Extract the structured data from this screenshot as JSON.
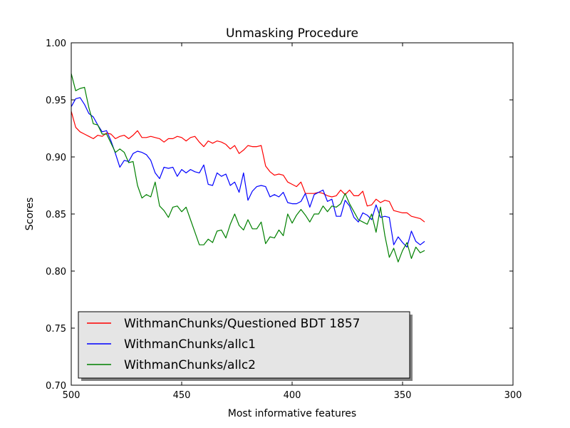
{
  "chart_data": {
    "type": "line",
    "title": "Unmasking Procedure",
    "xlabel": "Most informative features",
    "ylabel": "Scores",
    "xlim": [
      500,
      300
    ],
    "ylim": [
      0.7,
      1.0
    ],
    "xticks": [
      "500",
      "450",
      "400",
      "350",
      "300"
    ],
    "yticks": [
      "0.70",
      "0.75",
      "0.80",
      "0.85",
      "0.90",
      "0.95",
      "1.00"
    ],
    "grid": false,
    "legend_position": "lower-left",
    "x": [
      500,
      498,
      496,
      494,
      492,
      490,
      488,
      486,
      484,
      482,
      480,
      478,
      476,
      474,
      472,
      470,
      468,
      466,
      464,
      462,
      460,
      458,
      456,
      454,
      452,
      450,
      448,
      446,
      444,
      442,
      440,
      438,
      436,
      434,
      432,
      430,
      428,
      426,
      424,
      422,
      420,
      418,
      416,
      414,
      412,
      410,
      408,
      406,
      404,
      402,
      400,
      398,
      396,
      394,
      392,
      390,
      388,
      386,
      384,
      382,
      380,
      378,
      376,
      374,
      372,
      370,
      368,
      366,
      364,
      362,
      360,
      358,
      356,
      354,
      352,
      350,
      348,
      346,
      344,
      342,
      340
    ],
    "series": [
      {
        "name": "WithmanChunks/Questioned BDT 1857",
        "color": "#ff0000",
        "values": [
          0.94,
          0.926,
          0.922,
          0.92,
          0.918,
          0.916,
          0.919,
          0.918,
          0.921,
          0.92,
          0.916,
          0.918,
          0.919,
          0.916,
          0.919,
          0.923,
          0.917,
          0.917,
          0.918,
          0.917,
          0.916,
          0.913,
          0.916,
          0.916,
          0.918,
          0.917,
          0.914,
          0.917,
          0.918,
          0.913,
          0.909,
          0.914,
          0.912,
          0.914,
          0.913,
          0.911,
          0.907,
          0.91,
          0.903,
          0.906,
          0.91,
          0.909,
          0.909,
          0.91,
          0.892,
          0.887,
          0.884,
          0.885,
          0.884,
          0.878,
          0.876,
          0.874,
          0.878,
          0.868,
          0.868,
          0.868,
          0.869,
          0.868,
          0.866,
          0.865,
          0.866,
          0.871,
          0.867,
          0.871,
          0.866,
          0.866,
          0.87,
          0.857,
          0.858,
          0.863,
          0.86,
          0.862,
          0.861,
          0.853,
          0.852,
          0.851,
          0.851,
          0.848,
          0.847,
          0.846,
          0.843
        ]
      },
      {
        "name": "WithmanChunks/allc1",
        "color": "#0000ff",
        "values": [
          0.944,
          0.951,
          0.952,
          0.946,
          0.938,
          0.935,
          0.928,
          0.922,
          0.923,
          0.914,
          0.903,
          0.891,
          0.897,
          0.896,
          0.903,
          0.905,
          0.904,
          0.902,
          0.897,
          0.886,
          0.881,
          0.891,
          0.89,
          0.891,
          0.883,
          0.889,
          0.886,
          0.889,
          0.887,
          0.886,
          0.893,
          0.876,
          0.875,
          0.886,
          0.883,
          0.885,
          0.875,
          0.878,
          0.869,
          0.886,
          0.862,
          0.87,
          0.874,
          0.875,
          0.874,
          0.865,
          0.867,
          0.865,
          0.869,
          0.86,
          0.859,
          0.859,
          0.861,
          0.868,
          0.856,
          0.867,
          0.869,
          0.871,
          0.861,
          0.863,
          0.848,
          0.848,
          0.862,
          0.857,
          0.847,
          0.843,
          0.851,
          0.849,
          0.845,
          0.858,
          0.847,
          0.848,
          0.847,
          0.823,
          0.83,
          0.825,
          0.821,
          0.835,
          0.826,
          0.823,
          0.826
        ]
      },
      {
        "name": "WithmanChunks/allc2",
        "color": "#008000",
        "values": [
          0.973,
          0.958,
          0.96,
          0.961,
          0.943,
          0.929,
          0.928,
          0.92,
          0.92,
          0.912,
          0.904,
          0.907,
          0.904,
          0.895,
          0.896,
          0.875,
          0.864,
          0.867,
          0.865,
          0.878,
          0.857,
          0.853,
          0.847,
          0.856,
          0.857,
          0.852,
          0.856,
          0.845,
          0.834,
          0.823,
          0.823,
          0.828,
          0.825,
          0.835,
          0.836,
          0.829,
          0.841,
          0.85,
          0.84,
          0.836,
          0.845,
          0.837,
          0.837,
          0.843,
          0.824,
          0.83,
          0.829,
          0.836,
          0.831,
          0.85,
          0.842,
          0.849,
          0.854,
          0.849,
          0.843,
          0.85,
          0.85,
          0.857,
          0.852,
          0.857,
          0.856,
          0.859,
          0.868,
          0.859,
          0.852,
          0.845,
          0.843,
          0.841,
          0.85,
          0.834,
          0.856,
          0.831,
          0.812,
          0.82,
          0.808,
          0.818,
          0.825,
          0.811,
          0.821,
          0.816,
          0.818
        ]
      }
    ]
  }
}
